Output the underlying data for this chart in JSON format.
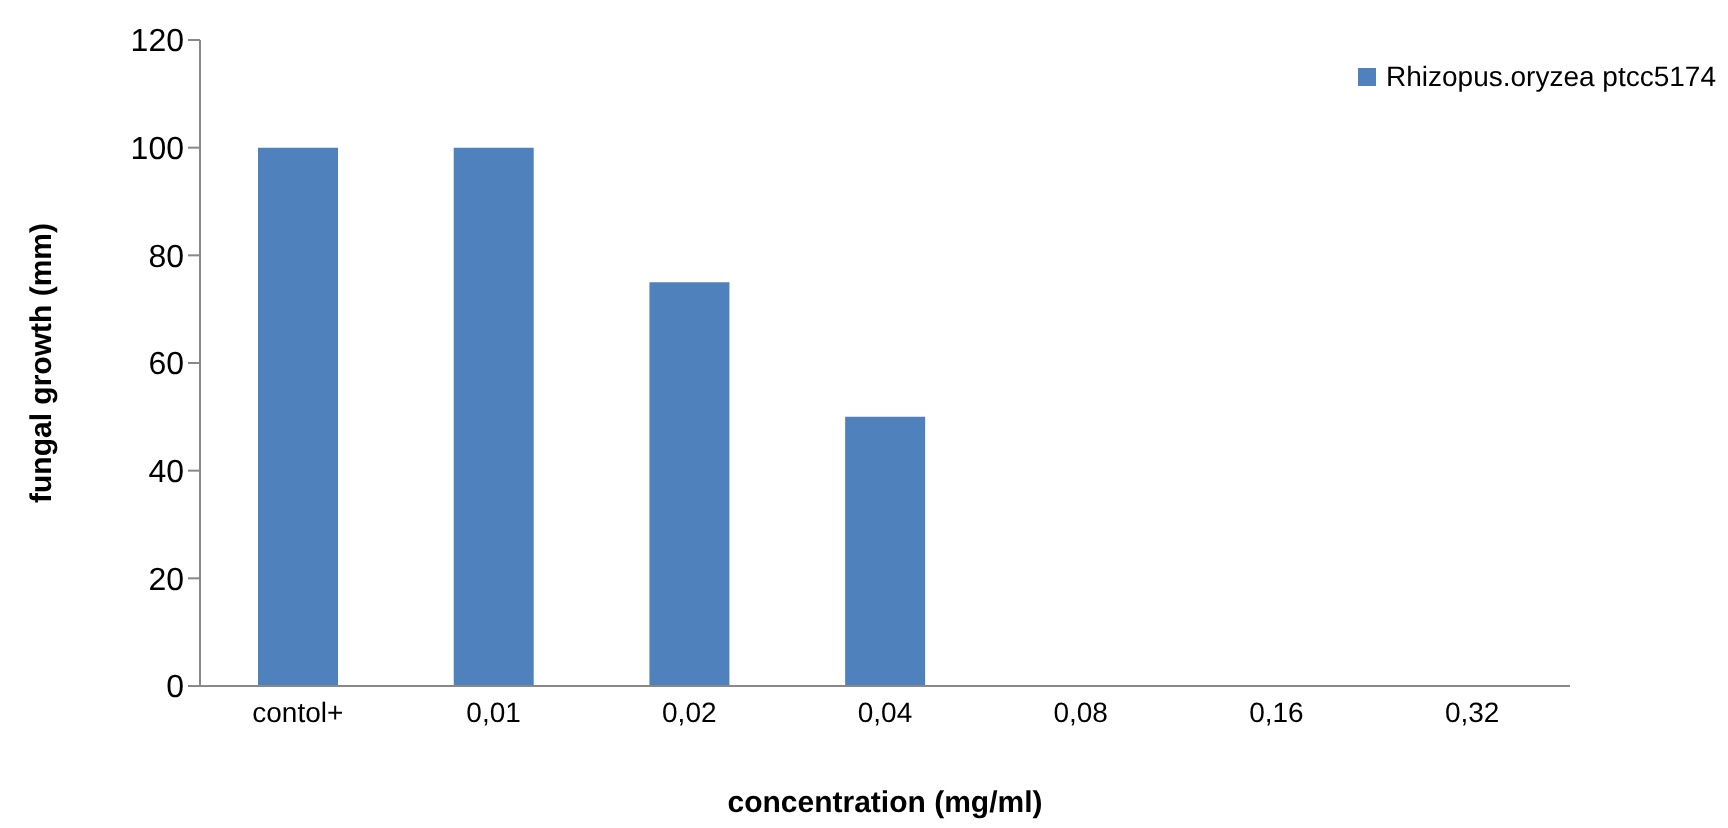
{
  "chart_data": {
    "type": "bar",
    "xlabel": "concentration (mg/ml)",
    "ylabel": "fungal growth (mm)",
    "categories": [
      "contol+",
      "0,01",
      "0,02",
      "0,04",
      "0,08",
      "0,16",
      "0,32"
    ],
    "series": [
      {
        "name": "Rhizopus.oryzea ptcc5174",
        "color": "#4f81bd",
        "values": [
          100,
          100,
          75,
          50,
          0,
          0,
          0
        ]
      }
    ],
    "ylim": [
      0,
      120
    ],
    "yticks": [
      0,
      20,
      40,
      60,
      80,
      100,
      120
    ],
    "grid": false,
    "legend": "top right"
  }
}
